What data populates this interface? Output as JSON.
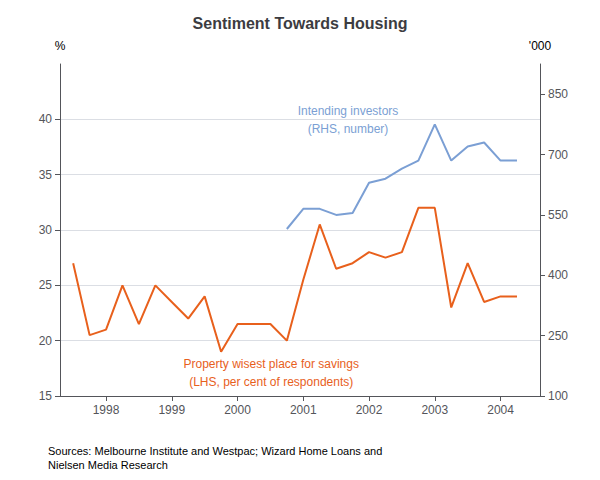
{
  "chart_data": {
    "type": "line",
    "title": "Sentiment Towards Housing",
    "source": "Sources: Melbourne Institute and Westpac; Wizard Home Loans and\nNielsen Media Research",
    "ylabel": "%",
    "y2label": "'000",
    "xlim": [
      1997.3,
      2004.6
    ],
    "xticks": [
      1998,
      1999,
      2000,
      2001,
      2002,
      2003,
      2004
    ],
    "ylim": [
      15,
      45
    ],
    "yticks": [
      15,
      20,
      25,
      30,
      35,
      40
    ],
    "y2lim": [
      100,
      925
    ],
    "y2ticks": [
      100,
      250,
      400,
      550,
      700,
      850
    ],
    "grid": true,
    "series": [
      {
        "color": "#E8601C",
        "x": [
          1997.5,
          1997.75,
          1998.0,
          1998.25,
          1998.5,
          1998.75,
          1999.0,
          1999.25,
          1999.5,
          1999.75,
          2000.0,
          2000.25,
          2000.5,
          2000.75,
          2001.0,
          2001.25,
          2001.5,
          2001.75,
          2002.0,
          2002.25,
          2002.5,
          2002.75,
          2003.0,
          2003.25,
          2003.5,
          2003.75,
          2004.0,
          2004.25
        ],
        "values": [
          27.0,
          20.5,
          21.0,
          25.0,
          21.5,
          25.0,
          23.5,
          22.0,
          24.0,
          19.0,
          21.5,
          21.5,
          21.5,
          20.0,
          25.5,
          30.5,
          26.5,
          27.0,
          28.0,
          27.5,
          28.0,
          32.0,
          32.0,
          23.0,
          27.0,
          23.5,
          24.0,
          24.0
        ]
      },
      {
        "color": "#7B9FD4",
        "axis": "y2",
        "x": [
          2000.75,
          2001.0,
          2001.25,
          2001.5,
          2001.75,
          2002.0,
          2002.25,
          2002.5,
          2002.75,
          2003.0,
          2003.25,
          2003.5,
          2003.75,
          2004.0,
          2004.25
        ],
        "values": [
          515,
          565,
          565,
          550,
          555,
          630,
          640,
          665,
          685,
          775,
          685,
          720,
          730,
          685,
          685
        ]
      }
    ],
    "annotations": [
      {
        "lines": [
          "Intending investors",
          "(RHS, number)"
        ],
        "color": "#7B9FD4"
      },
      {
        "lines": [
          "Property wisest place for savings",
          "(LHS, per cent of respondents)"
        ],
        "color": "#E8601C"
      }
    ]
  }
}
